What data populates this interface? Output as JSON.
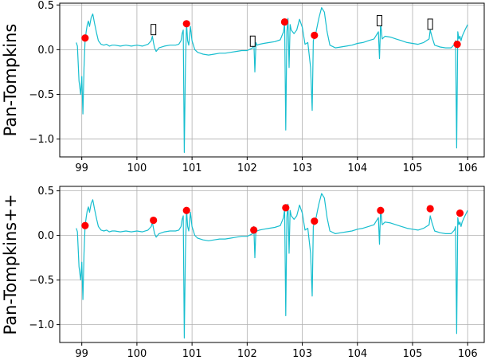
{
  "chart_data": [
    {
      "type": "line",
      "ylabel": "Pan-Tompkins",
      "xlim": [
        98.6,
        106.3
      ],
      "ylim": [
        -1.2,
        0.52
      ],
      "xticks": [
        99,
        100,
        101,
        102,
        103,
        104,
        105,
        106
      ],
      "xtick_labels": [
        "99",
        "100",
        "101",
        "102",
        "103",
        "104",
        "105",
        "106"
      ],
      "yticks": [
        0.5,
        0.0,
        -0.5,
        -1.0
      ],
      "ytick_labels": [
        "0.5",
        "0.0",
        "−0.5",
        "−1.0"
      ],
      "grid": true,
      "series": [
        {
          "color": "#17becf",
          "x": [
            98.9,
            98.92,
            98.95,
            98.98,
            99.0,
            99.02,
            99.04,
            99.06,
            99.08,
            99.1,
            99.12,
            99.14,
            99.17,
            99.2,
            99.23,
            99.27,
            99.3,
            99.35,
            99.4,
            99.45,
            99.5,
            99.55,
            99.6,
            99.7,
            99.8,
            99.9,
            100.0,
            100.1,
            100.2,
            100.26,
            100.28,
            100.3,
            100.32,
            100.35,
            100.4,
            100.5,
            100.6,
            100.7,
            100.76,
            100.8,
            100.82,
            100.84,
            100.86,
            100.88,
            100.9,
            100.92,
            100.94,
            100.97,
            101.0,
            101.05,
            101.1,
            101.15,
            101.2,
            101.3,
            101.4,
            101.5,
            101.6,
            101.7,
            101.8,
            101.9,
            102.0,
            102.1,
            102.12,
            102.14,
            102.16,
            102.18,
            102.22,
            102.3,
            102.4,
            102.5,
            102.6,
            102.66,
            102.68,
            102.7,
            102.72,
            102.74,
            102.76,
            102.78,
            102.8,
            102.85,
            102.9,
            102.95,
            103.0,
            103.05,
            103.1,
            103.15,
            103.18,
            103.2,
            103.25,
            103.3,
            103.35,
            103.4,
            103.45,
            103.5,
            103.6,
            103.7,
            103.8,
            103.9,
            104.0,
            104.1,
            104.2,
            104.3,
            104.38,
            104.4,
            104.42,
            104.45,
            104.5,
            104.6,
            104.7,
            104.8,
            104.9,
            105.0,
            105.1,
            105.2,
            105.3,
            105.32,
            105.35,
            105.4,
            105.5,
            105.6,
            105.7,
            105.76,
            105.78,
            105.8,
            105.82,
            105.84,
            105.86,
            105.88,
            105.9,
            105.95,
            106.0
          ],
          "y": [
            0.08,
            0.04,
            -0.35,
            -0.5,
            -0.3,
            -0.72,
            -0.2,
            0.1,
            0.2,
            0.28,
            0.32,
            0.26,
            0.36,
            0.4,
            0.3,
            0.18,
            0.1,
            0.06,
            0.05,
            0.06,
            0.04,
            0.05,
            0.05,
            0.04,
            0.05,
            0.04,
            0.05,
            0.04,
            0.06,
            0.1,
            0.15,
            0.08,
            0.02,
            -0.02,
            0.02,
            0.04,
            0.05,
            0.05,
            0.06,
            0.1,
            0.18,
            0.22,
            -1.15,
            -0.2,
            0.3,
            0.1,
            0.05,
            0.26,
            0.1,
            0.0,
            -0.03,
            -0.04,
            -0.05,
            -0.06,
            -0.05,
            -0.04,
            -0.04,
            -0.03,
            -0.02,
            -0.01,
            -0.01,
            0.02,
            0.1,
            -0.25,
            0.08,
            0.05,
            0.06,
            0.07,
            0.08,
            0.09,
            0.11,
            0.2,
            0.3,
            -0.9,
            0.2,
            0.35,
            -0.2,
            0.28,
            0.22,
            0.18,
            0.22,
            0.34,
            0.25,
            0.06,
            0.08,
            -0.2,
            -0.68,
            0.1,
            0.2,
            0.35,
            0.47,
            0.42,
            0.2,
            0.05,
            0.02,
            0.03,
            0.04,
            0.05,
            0.07,
            0.08,
            0.1,
            0.12,
            0.2,
            -0.1,
            0.3,
            0.12,
            0.15,
            0.14,
            0.12,
            0.1,
            0.08,
            0.07,
            0.06,
            0.08,
            0.12,
            0.22,
            0.15,
            0.05,
            0.03,
            0.02,
            0.02,
            0.06,
            0.1,
            -1.1,
            0.2,
            0.12,
            0.15,
            0.1,
            0.15,
            0.22,
            0.28
          ]
        }
      ],
      "markers": [
        {
          "shape": "circle",
          "color": "#ff0000",
          "x": 99.06,
          "y": 0.13
        },
        {
          "shape": "rect",
          "x": 100.3,
          "y": 0.22
        },
        {
          "shape": "circle",
          "color": "#ff0000",
          "x": 100.9,
          "y": 0.29
        },
        {
          "shape": "rect",
          "x": 102.1,
          "y": 0.09
        },
        {
          "shape": "circle",
          "color": "#ff0000",
          "x": 102.68,
          "y": 0.31
        },
        {
          "shape": "circle",
          "color": "#ff0000",
          "x": 103.22,
          "y": 0.16
        },
        {
          "shape": "rect",
          "x": 104.4,
          "y": 0.32
        },
        {
          "shape": "rect",
          "x": 105.32,
          "y": 0.28
        },
        {
          "shape": "circle",
          "color": "#ff0000",
          "x": 105.81,
          "y": 0.06
        }
      ]
    },
    {
      "type": "line",
      "ylabel": "Pan-Tompkins++",
      "xlim": [
        98.6,
        106.3
      ],
      "ylim": [
        -1.2,
        0.55
      ],
      "xticks": [
        99,
        100,
        101,
        102,
        103,
        104,
        105,
        106
      ],
      "xtick_labels": [
        "99",
        "100",
        "101",
        "102",
        "103",
        "104",
        "105",
        "106"
      ],
      "yticks": [
        0.5,
        0.0,
        -0.5,
        -1.0
      ],
      "ytick_labels": [
        "0.5",
        "0.0",
        "−0.5",
        "−1.0"
      ],
      "grid": true,
      "series": [
        {
          "color": "#17becf",
          "x": [
            98.9,
            98.92,
            98.95,
            98.98,
            99.0,
            99.02,
            99.04,
            99.06,
            99.08,
            99.1,
            99.12,
            99.14,
            99.17,
            99.2,
            99.23,
            99.27,
            99.3,
            99.35,
            99.4,
            99.45,
            99.5,
            99.55,
            99.6,
            99.7,
            99.8,
            99.9,
            100.0,
            100.1,
            100.2,
            100.26,
            100.28,
            100.3,
            100.32,
            100.35,
            100.4,
            100.5,
            100.6,
            100.7,
            100.76,
            100.8,
            100.82,
            100.84,
            100.86,
            100.88,
            100.9,
            100.92,
            100.94,
            100.97,
            101.0,
            101.05,
            101.1,
            101.15,
            101.2,
            101.3,
            101.4,
            101.5,
            101.6,
            101.7,
            101.8,
            101.9,
            102.0,
            102.1,
            102.12,
            102.14,
            102.16,
            102.18,
            102.22,
            102.3,
            102.4,
            102.5,
            102.6,
            102.66,
            102.68,
            102.7,
            102.72,
            102.74,
            102.76,
            102.78,
            102.8,
            102.85,
            102.9,
            102.95,
            103.0,
            103.05,
            103.1,
            103.15,
            103.18,
            103.2,
            103.25,
            103.3,
            103.35,
            103.4,
            103.45,
            103.5,
            103.6,
            103.7,
            103.8,
            103.9,
            104.0,
            104.1,
            104.2,
            104.3,
            104.38,
            104.4,
            104.42,
            104.45,
            104.5,
            104.6,
            104.7,
            104.8,
            104.9,
            105.0,
            105.1,
            105.2,
            105.3,
            105.32,
            105.35,
            105.4,
            105.5,
            105.6,
            105.7,
            105.76,
            105.78,
            105.8,
            105.82,
            105.84,
            105.86,
            105.88,
            105.9,
            105.95,
            106.0
          ],
          "y": [
            0.08,
            0.04,
            -0.35,
            -0.5,
            -0.3,
            -0.72,
            -0.2,
            0.1,
            0.2,
            0.28,
            0.32,
            0.26,
            0.36,
            0.4,
            0.3,
            0.18,
            0.1,
            0.06,
            0.05,
            0.06,
            0.04,
            0.05,
            0.05,
            0.04,
            0.05,
            0.04,
            0.05,
            0.04,
            0.06,
            0.1,
            0.15,
            0.08,
            0.02,
            -0.02,
            0.02,
            0.04,
            0.05,
            0.05,
            0.06,
            0.1,
            0.18,
            0.22,
            -1.15,
            -0.2,
            0.3,
            0.1,
            0.05,
            0.26,
            0.1,
            0.0,
            -0.03,
            -0.04,
            -0.05,
            -0.06,
            -0.05,
            -0.04,
            -0.04,
            -0.03,
            -0.02,
            -0.01,
            -0.01,
            0.02,
            0.1,
            -0.25,
            0.08,
            0.05,
            0.06,
            0.07,
            0.08,
            0.09,
            0.11,
            0.2,
            0.3,
            -0.9,
            0.2,
            0.35,
            -0.2,
            0.28,
            0.22,
            0.18,
            0.22,
            0.34,
            0.25,
            0.06,
            0.08,
            -0.2,
            -0.68,
            0.1,
            0.2,
            0.35,
            0.47,
            0.42,
            0.2,
            0.05,
            0.02,
            0.03,
            0.04,
            0.05,
            0.07,
            0.08,
            0.1,
            0.12,
            0.2,
            -0.1,
            0.3,
            0.12,
            0.15,
            0.14,
            0.12,
            0.1,
            0.08,
            0.07,
            0.06,
            0.08,
            0.12,
            0.22,
            0.15,
            0.05,
            0.03,
            0.02,
            0.02,
            0.06,
            0.1,
            -1.1,
            0.2,
            0.12,
            0.15,
            0.1,
            0.15,
            0.22,
            0.28
          ]
        }
      ],
      "markers": [
        {
          "shape": "circle",
          "color": "#ff0000",
          "x": 99.06,
          "y": 0.11
        },
        {
          "shape": "circle",
          "color": "#ff0000",
          "x": 100.3,
          "y": 0.17
        },
        {
          "shape": "circle",
          "color": "#ff0000",
          "x": 100.9,
          "y": 0.28
        },
        {
          "shape": "circle",
          "color": "#ff0000",
          "x": 102.12,
          "y": 0.06
        },
        {
          "shape": "circle",
          "color": "#ff0000",
          "x": 102.7,
          "y": 0.31
        },
        {
          "shape": "circle",
          "color": "#ff0000",
          "x": 103.22,
          "y": 0.16
        },
        {
          "shape": "circle",
          "color": "#ff0000",
          "x": 104.42,
          "y": 0.28
        },
        {
          "shape": "circle",
          "color": "#ff0000",
          "x": 105.32,
          "y": 0.3
        },
        {
          "shape": "circle",
          "color": "#ff0000",
          "x": 105.86,
          "y": 0.25
        }
      ]
    }
  ]
}
